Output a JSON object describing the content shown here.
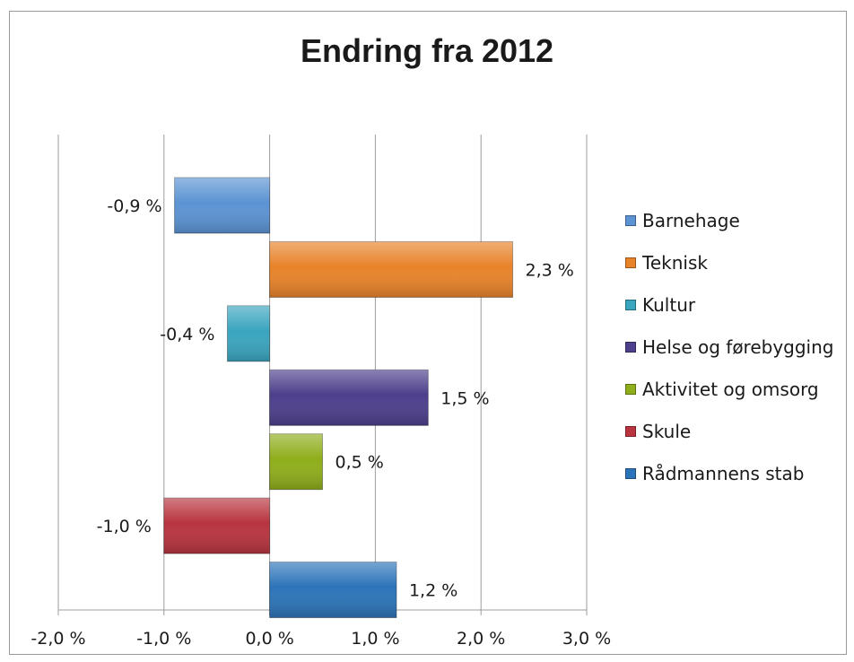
{
  "chart_data": {
    "type": "bar",
    "orientation": "horizontal",
    "title": "Endring fra 2012",
    "categories": [
      "Barnehage",
      "Teknisk",
      "Kultur",
      "Helse og førebygging",
      "Aktivitet og omsorg",
      "Skule",
      "Rådmannens stab"
    ],
    "values": [
      -0.9,
      2.3,
      -0.4,
      1.5,
      0.5,
      -1.0,
      1.2
    ],
    "data_labels": [
      "-0,9 %",
      "2,3 %",
      "-0,4 %",
      "1,5 %",
      "0,5 %",
      "-1,0 %",
      "1,2 %"
    ],
    "colors": [
      "#5b93d3",
      "#e8832a",
      "#3aa5bf",
      "#4d3f8c",
      "#8fae1b",
      "#b8343f",
      "#2c74b9"
    ],
    "xlim": [
      -2.0,
      3.0
    ],
    "x_ticks": [
      -2.0,
      -1.0,
      0.0,
      1.0,
      2.0,
      3.0
    ],
    "x_tick_labels": [
      "-2,0 %",
      "-1,0 %",
      "0,0 %",
      "1,0 %",
      "2,0 %",
      "3,0 %"
    ],
    "grid": "vertical",
    "legend_position": "right",
    "legend": [
      "Barnehage",
      "Teknisk",
      "Kultur",
      "Helse og førebygging",
      "Aktivitet og omsorg",
      "Skule",
      "Rådmannens stab"
    ]
  }
}
